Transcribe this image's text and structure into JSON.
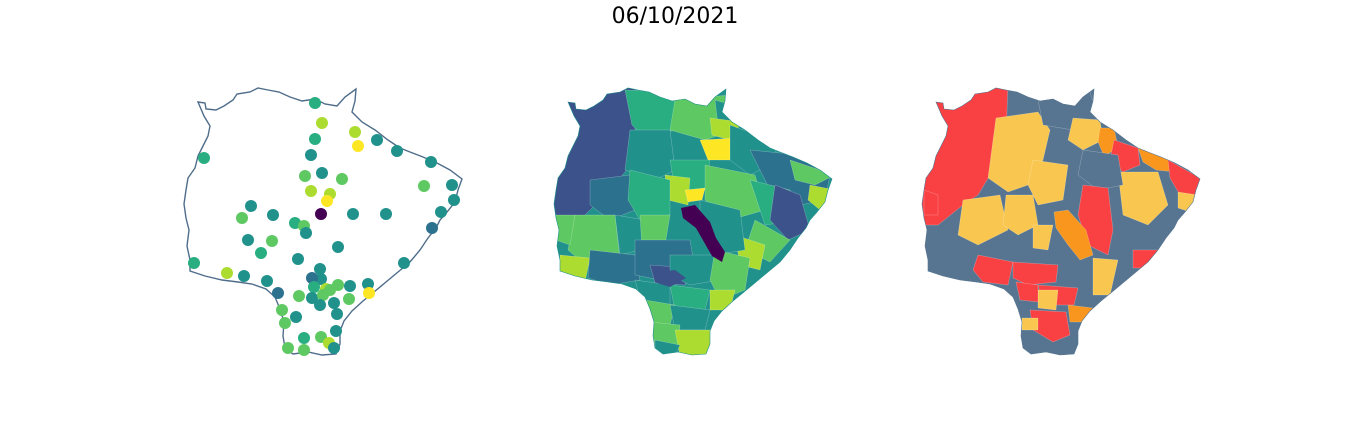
{
  "title": "06/10/2021",
  "colors": {
    "outline": "#4f6d8a",
    "viridis": [
      "#440154",
      "#3b528b",
      "#2c728e",
      "#21918c",
      "#28ae80",
      "#5ec962",
      "#addc30",
      "#fde725"
    ],
    "risk": {
      "red": "#f94144",
      "orange": "#f8961e",
      "yellow": "#f9c74f",
      "slate": "#577590"
    }
  },
  "panels": [
    {
      "name": "points-map",
      "type": "scatter-points"
    },
    {
      "name": "choropleth-viridis",
      "type": "choropleth"
    },
    {
      "name": "choropleth-risk",
      "type": "choropleth"
    }
  ]
}
